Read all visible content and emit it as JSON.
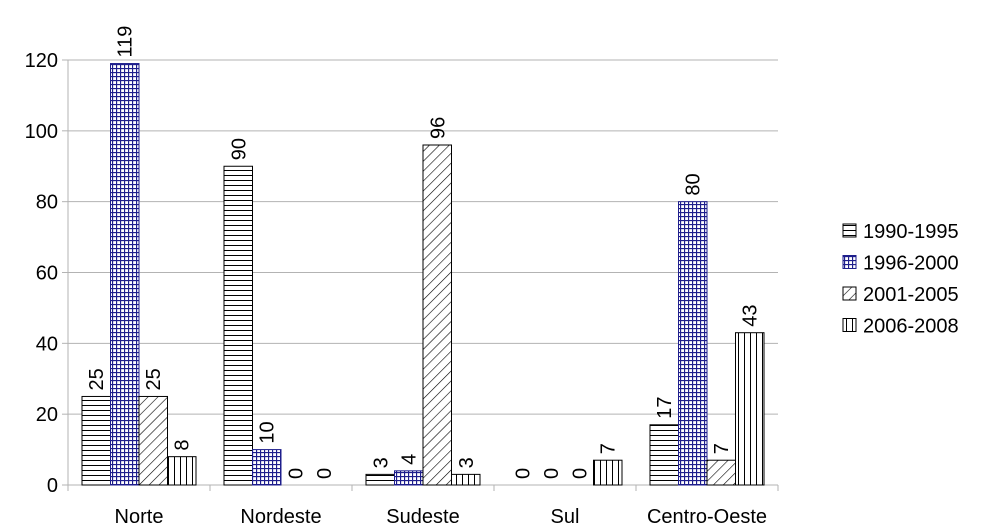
{
  "chart_data": {
    "type": "bar",
    "categories": [
      "Norte",
      "Nordeste",
      "Sudeste",
      "Sul",
      "Centro-Oeste"
    ],
    "series": [
      {
        "name": "1990-1995",
        "values": [
          25,
          90,
          3,
          0,
          17
        ],
        "pattern": "horizontal"
      },
      {
        "name": "1996-2000",
        "values": [
          119,
          10,
          4,
          0,
          80
        ],
        "pattern": "grid",
        "color": "#1e1e8c"
      },
      {
        "name": "2001-2005",
        "values": [
          25,
          0,
          96,
          0,
          7
        ],
        "pattern": "diagonal"
      },
      {
        "name": "2006-2008",
        "values": [
          8,
          0,
          3,
          7,
          43
        ],
        "pattern": "vertical"
      }
    ],
    "ylim": [
      0,
      120
    ],
    "yticks": [
      0,
      20,
      40,
      60,
      80,
      100,
      120
    ],
    "grid": true,
    "legend": "right",
    "data_labels": true
  }
}
